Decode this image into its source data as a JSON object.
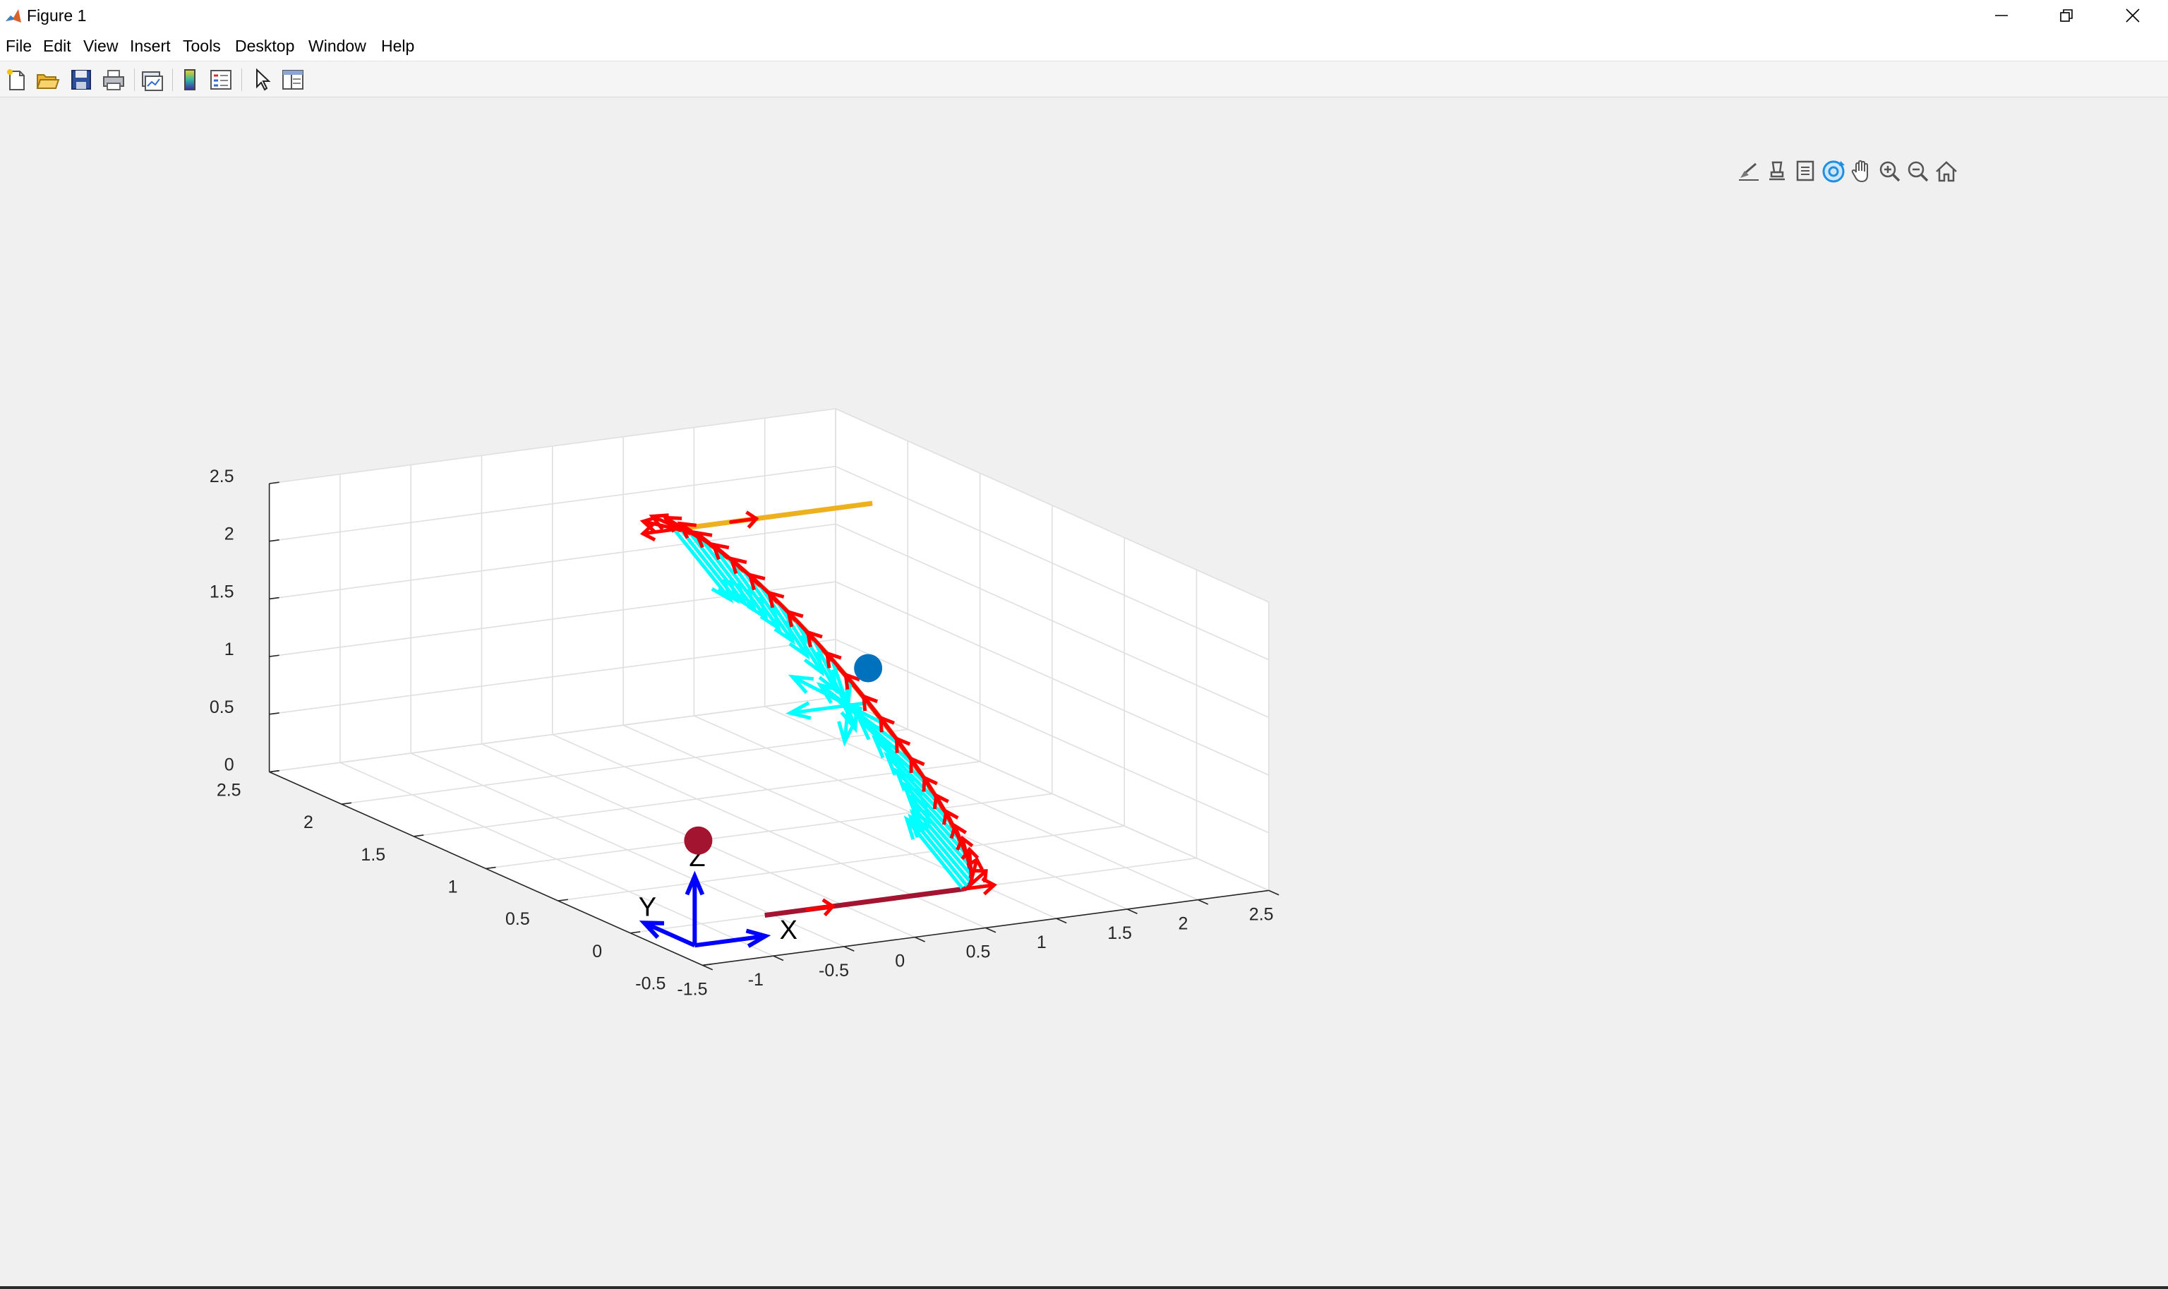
{
  "window": {
    "title": "Figure 1",
    "controls": [
      "minimize",
      "restore",
      "close"
    ]
  },
  "menu": {
    "items": [
      "File",
      "Edit",
      "View",
      "Insert",
      "Tools",
      "Desktop",
      "Window",
      "Help"
    ]
  },
  "toolbar": {
    "buttons": [
      "new-figure",
      "open-file",
      "save",
      "print",
      "link-plot",
      "insert-colorbar",
      "insert-legend",
      "edit-plot",
      "property-inspector"
    ]
  },
  "axes_toolbar": {
    "buttons": [
      "brush",
      "data-tips",
      "linked-data",
      "rotate-3d",
      "pan",
      "zoom-in",
      "zoom-out",
      "restore-view"
    ]
  },
  "chart_data": {
    "type": "line",
    "projection": "3d",
    "grid": true,
    "xlim": [
      -1.5,
      2.5
    ],
    "ylim": [
      -0.5,
      2.5
    ],
    "zlim": [
      0,
      2.5
    ],
    "x_ticks": [
      "-1.5",
      "-1",
      "-0.5",
      "0",
      "0.5",
      "1",
      "1.5",
      "2",
      "2.5"
    ],
    "y_ticks": [
      "-0.5",
      "0",
      "0.5",
      "1",
      "1.5",
      "2",
      "2.5"
    ],
    "z_ticks": [
      "0",
      "0.5",
      "1",
      "1.5",
      "2",
      "2.5"
    ],
    "frame_labels": [
      "X",
      "Y",
      "Z"
    ],
    "colors": {
      "straight_in": "#a2142f",
      "arc_low": "#0072bd",
      "arc_high": "#d95319",
      "straight_out": "#edb120",
      "tangent_arrows": "#ff0000",
      "normal_arrows": "#00ffff",
      "frame": "#0000ff"
    },
    "series": [
      {
        "points": [
          [
            -0.55,
            0,
            0
          ],
          [
            0.85,
            0,
            0
          ]
        ]
      },
      {
        "points": "helical-arc from (0.85,0,0) to (0.85,2,2), radius 1 about axis through (0.85,1,1)"
      },
      {
        "points": [
          [
            0.85,
            2,
            2
          ],
          [
            2.25,
            2,
            2
          ]
        ]
      }
    ],
    "markers": [
      {
        "point": [
          0,
          1,
          0
        ],
        "color": "#a2142f"
      },
      {
        "point": [
          1.2,
          1,
          1.3
        ],
        "color": "#0072bd"
      }
    ]
  }
}
